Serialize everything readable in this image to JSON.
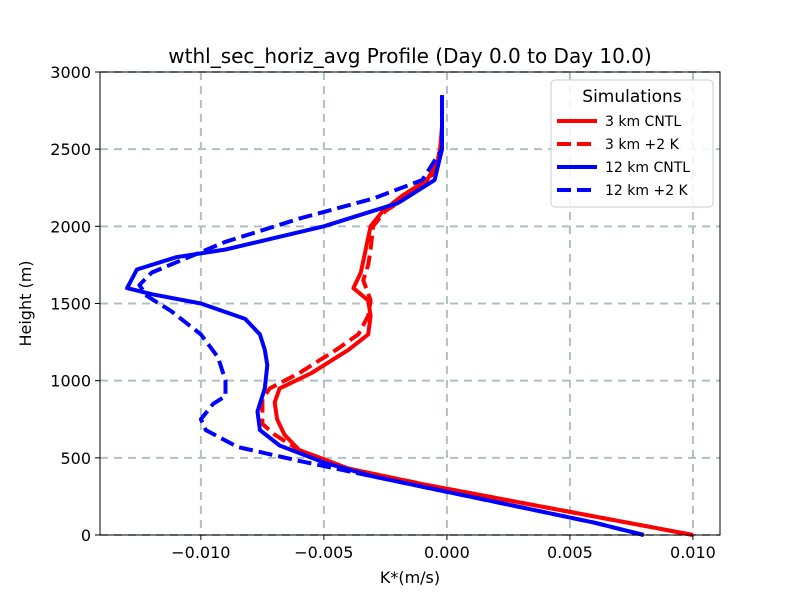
{
  "chart_data": {
    "type": "line",
    "title": "wthl_sec_horiz_avg Profile (Day 0.0 to Day 10.0)",
    "xlabel": "K*(m/s)",
    "ylabel": "Height (m)",
    "xlim": [
      -0.0141,
      0.0111
    ],
    "ylim": [
      0,
      3000
    ],
    "xticks": [
      -0.01,
      -0.005,
      0.0,
      0.005,
      0.01
    ],
    "xtick_labels": [
      "−0.010",
      "−0.005",
      "0.000",
      "0.005",
      "0.010"
    ],
    "yticks": [
      0,
      500,
      1000,
      1500,
      2000,
      2500,
      3000
    ],
    "ytick_labels": [
      "0",
      "500",
      "1000",
      "1500",
      "2000",
      "2500",
      "3000"
    ],
    "grid": true,
    "legend": {
      "title": "Simulations",
      "placement": "top-right"
    },
    "series": [
      {
        "name": "3 km CNTL",
        "color": "#ff0000",
        "style": "solid",
        "x": [
          0.01,
          0.008,
          0.005,
          0.002,
          -0.001,
          -0.004,
          -0.006,
          -0.0066,
          -0.0069,
          -0.007,
          -0.0068,
          -0.0055,
          -0.004,
          -0.0032,
          -0.0031,
          -0.0032,
          -0.0038,
          -0.0035,
          -0.0033,
          -0.0031,
          -0.0026,
          -0.0018,
          -0.0008,
          -0.0003,
          -0.0002,
          -0.0002
        ],
        "y": [
          0,
          60,
          150,
          240,
          330,
          430,
          550,
          650,
          750,
          860,
          950,
          1050,
          1200,
          1300,
          1420,
          1520,
          1600,
          1700,
          1850,
          2000,
          2100,
          2200,
          2300,
          2450,
          2650,
          2850
        ]
      },
      {
        "name": "3 km +2 K",
        "color": "#ff0000",
        "style": "dashed",
        "x": [
          0.01,
          0.008,
          0.005,
          0.002,
          -0.001,
          -0.004,
          -0.006,
          -0.007,
          -0.0075,
          -0.0075,
          -0.0072,
          -0.006,
          -0.0045,
          -0.0036,
          -0.0032,
          -0.0031,
          -0.0034,
          -0.0032,
          -0.0031,
          -0.003,
          -0.0025,
          -0.0015,
          -0.0005,
          -0.0002,
          -0.0002
        ],
        "y": [
          0,
          60,
          150,
          240,
          330,
          430,
          550,
          650,
          720,
          880,
          950,
          1050,
          1200,
          1300,
          1420,
          1520,
          1650,
          1750,
          1850,
          2000,
          2100,
          2200,
          2350,
          2550,
          2850
        ]
      },
      {
        "name": "12 km CNTL",
        "color": "#0000ff",
        "style": "solid",
        "x": [
          0.008,
          0.006,
          0.003,
          0.0,
          -0.003,
          -0.005,
          -0.0068,
          -0.0076,
          -0.0077,
          -0.0074,
          -0.0073,
          -0.0074,
          -0.0076,
          -0.0082,
          -0.01,
          -0.012,
          -0.013,
          -0.0126,
          -0.011,
          -0.009,
          -0.005,
          -0.002,
          -0.0005,
          -0.0002,
          -0.0002
        ],
        "y": [
          0,
          80,
          180,
          280,
          380,
          470,
          580,
          680,
          800,
          950,
          1100,
          1200,
          1300,
          1400,
          1500,
          1560,
          1600,
          1720,
          1800,
          1850,
          2000,
          2150,
          2300,
          2500,
          2850
        ]
      },
      {
        "name": "12 km +2 K",
        "color": "#0000ff",
        "style": "dashed",
        "x": [
          0.008,
          0.006,
          0.003,
          0.0,
          -0.003,
          -0.006,
          -0.0085,
          -0.0098,
          -0.01,
          -0.0095,
          -0.009,
          -0.009,
          -0.0093,
          -0.01,
          -0.0112,
          -0.0122,
          -0.0125,
          -0.012,
          -0.009,
          -0.006,
          -0.003,
          -0.001,
          -0.0002,
          -0.0002
        ],
        "y": [
          0,
          80,
          180,
          280,
          380,
          480,
          570,
          680,
          750,
          850,
          900,
          1000,
          1150,
          1300,
          1450,
          1550,
          1620,
          1700,
          1900,
          2050,
          2180,
          2300,
          2500,
          2850
        ]
      }
    ]
  }
}
